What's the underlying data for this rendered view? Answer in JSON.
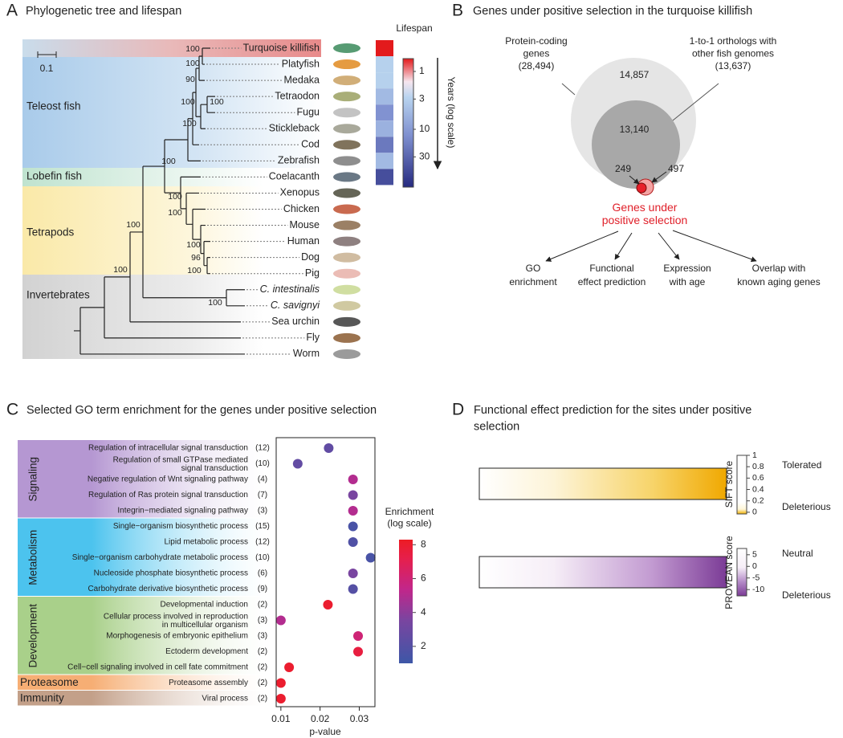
{
  "panels": {
    "a": {
      "label": "A",
      "title": "Phylogenetic tree and lifespan",
      "scale_bar": "0.1",
      "groups": [
        "Teleost fish",
        "Lobefin fish",
        "Tetrapods",
        "Invertebrates"
      ],
      "species": [
        "Turquoise killifish",
        "Platyfish",
        "Medaka",
        "Tetraodon",
        "Fugu",
        "Stickleback",
        "Cod",
        "Zebrafish",
        "Coelacanth",
        "Xenopus",
        "Chicken",
        "Mouse",
        "Human",
        "Dog",
        "Pig",
        "C. intestinalis",
        "C. savignyi",
        "Sea urchin",
        "Fly",
        "Worm"
      ],
      "support": [
        100,
        100,
        90,
        100,
        100,
        100,
        100,
        100,
        100,
        100,
        96,
        100,
        100,
        100,
        100
      ],
      "lifespan": {
        "title": "Lifespan",
        "axis_label": "Years (log scale)",
        "log": true,
        "years": [
          0.6,
          3,
          3,
          5,
          12,
          6,
          20,
          5,
          48
        ],
        "lim": [
          0.6,
          100
        ],
        "ticks": [
          1,
          3,
          10,
          30
        ]
      }
    },
    "b": {
      "label": "B",
      "title": "Genes under positive selection in the turquoise killifish",
      "protein_coding": "Protein-coding\ngenes\n(28,494)",
      "orthologs": "1-to-1 orthologs with\nother fish genomes\n(13,637)",
      "outer_only": "14,857",
      "orthologs_only": "13,140",
      "selected_a": "249",
      "selected_b": "497",
      "selected_label": "Genes under\npositive selection",
      "outputs": [
        "GO\nenrichment",
        "Functional\neffect prediction",
        "Expression\nwith age",
        "Overlap with\nknown aging genes"
      ]
    },
    "d": {
      "label": "D",
      "title": "Functional effect prediction for the sites under positive\nselection",
      "sift": {
        "label": "SIFT score",
        "lim": [
          -0.03,
          1
        ],
        "ticks": [
          1,
          0.8,
          0.6,
          0.4,
          0.2,
          0
        ],
        "high": "Tolerated",
        "low": "Deleterious"
      },
      "provean": {
        "label": "PROVEAN score",
        "lim": [
          -12.7,
          7.7
        ],
        "ticks": [
          5,
          0,
          -5,
          -10
        ],
        "high": "Neutral",
        "low": "Deleterious"
      }
    }
  },
  "chart_data": {
    "type": "scatter",
    "label": "C",
    "title": "Selected GO term enrichment for the genes under positive selection",
    "xlabel": "p-value",
    "xlim": [
      0.0088,
      0.034
    ],
    "xticks": [
      0.01,
      0.02,
      0.03
    ],
    "colorbar": {
      "label": "Enrichment\n(log scale)",
      "lim": [
        1,
        8.3
      ],
      "ticks": [
        2,
        4,
        6,
        8
      ]
    },
    "groups": [
      {
        "name": "Signaling",
        "terms": [
          {
            "term": "Regulation of intracellular signal transduction",
            "count": "(12)",
            "p_value": 0.0222,
            "enrichment": 2.5
          },
          {
            "term": "Regulation of small GTPase mediated\nsignal transduction",
            "count": "(10)",
            "p_value": 0.0143,
            "enrichment": 2.6
          },
          {
            "term": "Negative regulation of Wnt signaling pathway",
            "count": "(4)",
            "p_value": 0.0284,
            "enrichment": 5
          },
          {
            "term": "Regulation of Ras protein signal transduction",
            "count": "(7)",
            "p_value": 0.0284,
            "enrichment": 3.5
          },
          {
            "term": "Integrin−mediated signaling pathway",
            "count": "(3)",
            "p_value": 0.0284,
            "enrichment": 5
          }
        ]
      },
      {
        "name": "Metabolism",
        "terms": [
          {
            "term": "Single−organism biosynthetic process",
            "count": "(15)",
            "p_value": 0.0284,
            "enrichment": 1.5
          },
          {
            "term": "Lipid metabolic process",
            "count": "(12)",
            "p_value": 0.0284,
            "enrichment": 1.8
          },
          {
            "term": "Single−organism carbohydrate metabolic process",
            "count": "(10)",
            "p_value": 0.0329,
            "enrichment": 1.5
          },
          {
            "term": "Nucleoside phosphate biosynthetic process",
            "count": "(6)",
            "p_value": 0.0284,
            "enrichment": 3.5
          },
          {
            "term": "Carbohydrate derivative biosynthetic process",
            "count": "(9)",
            "p_value": 0.0284,
            "enrichment": 2
          }
        ]
      },
      {
        "name": "Development",
        "terms": [
          {
            "term": "Developmental induction",
            "count": "(2)",
            "p_value": 0.022,
            "enrichment": 8
          },
          {
            "term": "Cellular process involved in reproduction\nin multicellular organism",
            "count": "(3)",
            "p_value": 0.01,
            "enrichment": 5
          },
          {
            "term": "Morphogenesis of embryonic epithelium",
            "count": "(3)",
            "p_value": 0.0297,
            "enrichment": 6
          },
          {
            "term": "Ectoderm development",
            "count": "(2)",
            "p_value": 0.0297,
            "enrichment": 7.5
          },
          {
            "term": "Cell−cell signaling involved in cell fate commitment",
            "count": "(2)",
            "p_value": 0.0121,
            "enrichment": 8
          }
        ]
      },
      {
        "name": "Proteasome",
        "terms": [
          {
            "term": "Proteasome assembly",
            "count": "(2)",
            "p_value": 0.01,
            "enrichment": 8
          }
        ]
      },
      {
        "name": "Immunity",
        "terms": [
          {
            "term": "Viral process",
            "count": "(2)",
            "p_value": 0.01,
            "enrichment": 8
          }
        ]
      }
    ]
  }
}
